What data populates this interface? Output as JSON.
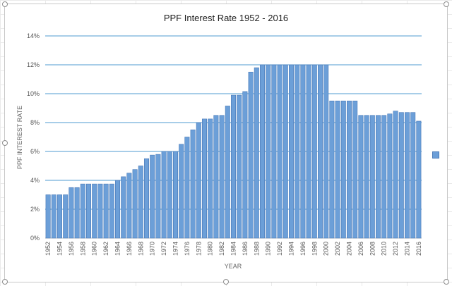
{
  "chart_data": {
    "type": "bar",
    "title": "PPF Interest Rate 1952 - 2016",
    "xlabel": "YEAR",
    "ylabel": "PPF INTEREST RATE",
    "ylim": [
      0,
      14
    ],
    "yticks": [
      "0%",
      "2%",
      "4%",
      "6%",
      "8%",
      "10%",
      "12%",
      "14%"
    ],
    "xtick_labels": [
      "1952",
      "1954",
      "1956",
      "1958",
      "1960",
      "1962",
      "1964",
      "1966",
      "1968",
      "1970",
      "1972",
      "1974",
      "1976",
      "1978",
      "1980",
      "1982",
      "1984",
      "1986",
      "1988",
      "1990",
      "1992",
      "1994",
      "1996",
      "1998",
      "2000",
      "2002",
      "2004",
      "2006",
      "2008",
      "2010",
      "2012",
      "2014",
      "2016"
    ],
    "grid": "horizontal",
    "bar_color": "#6c9fd8",
    "categories": [
      "1952",
      "1953",
      "1954",
      "1955",
      "1956",
      "1957",
      "1958",
      "1959",
      "1960",
      "1961",
      "1962",
      "1963",
      "1964",
      "1965",
      "1966",
      "1967",
      "1968",
      "1969",
      "1970",
      "1971",
      "1972",
      "1973",
      "1974",
      "1975",
      "1976",
      "1977",
      "1978",
      "1979",
      "1980",
      "1981",
      "1982",
      "1983",
      "1984",
      "1985",
      "1986",
      "1987",
      "1988",
      "1989",
      "1990",
      "1991",
      "1992",
      "1993",
      "1994",
      "1995",
      "1996",
      "1997",
      "1998",
      "1999",
      "2000",
      "2001",
      "2002",
      "2003",
      "2004",
      "2005",
      "2006",
      "2007",
      "2008",
      "2009",
      "2010",
      "2011",
      "2012",
      "2013",
      "2014",
      "2015",
      "2016"
    ],
    "values": [
      3,
      3,
      3,
      3,
      3.5,
      3.5,
      3.75,
      3.75,
      3.75,
      3.75,
      3.75,
      3.75,
      4,
      4.25,
      4.5,
      4.75,
      5,
      5.5,
      5.75,
      5.8,
      6,
      6,
      6,
      6.5,
      7,
      7.5,
      8,
      8.25,
      8.25,
      8.5,
      8.5,
      9.15,
      9.9,
      9.9,
      10.15,
      11.5,
      11.8,
      12,
      12,
      12,
      12,
      12,
      12,
      12,
      12,
      12,
      12,
      12,
      12,
      9.5,
      9.5,
      9.5,
      9.5,
      9.5,
      8.5,
      8.5,
      8.5,
      8.5,
      8.5,
      8.6,
      8.8,
      8.7,
      8.7,
      8.7,
      8.1
    ]
  }
}
